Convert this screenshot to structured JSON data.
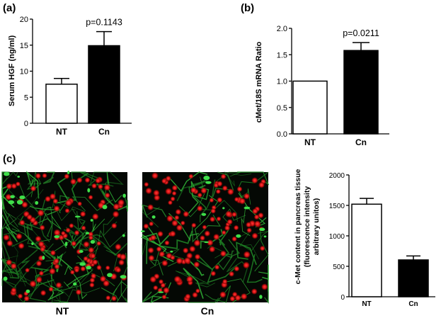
{
  "chart_data": [
    {
      "panel": "(a)",
      "type": "bar",
      "categories": [
        "NT",
        "Cn"
      ],
      "values": [
        7.5,
        14.9
      ],
      "errors": [
        1.1,
        2.7
      ],
      "bar_colors": [
        "#ffffff",
        "#000000"
      ],
      "ylabel": "Serum HGF (ng/ml)",
      "ylim": [
        0,
        20
      ],
      "yticks": [
        "0",
        "5",
        "10",
        "15",
        "20"
      ],
      "annotation": "p=0.1143"
    },
    {
      "panel": "(b)",
      "type": "bar",
      "categories": [
        "NT",
        "Cn"
      ],
      "values": [
        1.0,
        1.58
      ],
      "errors": [
        0.0,
        0.15
      ],
      "bar_colors": [
        "#ffffff",
        "#000000"
      ],
      "ylabel": "cMet/18S mRNA Ratio",
      "ylim": [
        0,
        2.0
      ],
      "yticks": [
        "0.0",
        "0.5",
        "1.0",
        "1.5",
        "2.0"
      ],
      "annotation": "p=0.0211"
    },
    {
      "panel": "(c)",
      "type": "bar",
      "categories": [
        "NT",
        "Cn"
      ],
      "values": [
        1520,
        605
      ],
      "errors": [
        95,
        65
      ],
      "bar_colors": [
        "#ffffff",
        "#000000"
      ],
      "ylabel_lines": [
        "c-Met content in pancreas tissue",
        "(fluorescence intensity",
        "arbitrary unitos)"
      ],
      "ylim": [
        0,
        2000
      ],
      "yticks": [
        "0",
        "500",
        "1000",
        "1500",
        "2000"
      ],
      "image_labels": [
        "NT",
        "Cn"
      ]
    }
  ]
}
